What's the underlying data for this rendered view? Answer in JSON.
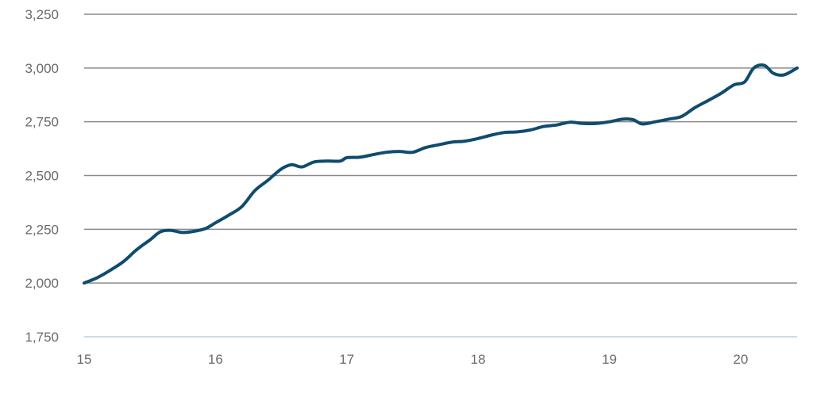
{
  "colors": {
    "line": "#0f4c6e",
    "grid": "#8a8a8a",
    "baseline": "#b9cfe0",
    "text": "#6b6b6b"
  },
  "chart_data": {
    "type": "line",
    "title": "",
    "xlabel": "",
    "ylabel": "",
    "xlim": [
      15,
      20.43
    ],
    "ylim": [
      1750,
      3250
    ],
    "grid": true,
    "y_ticks": [
      1750,
      2000,
      2250,
      2500,
      2750,
      3000,
      3250
    ],
    "y_tick_labels": [
      "1,750",
      "2,000",
      "2,250",
      "2,500",
      "2,750",
      "3,000",
      "3,250"
    ],
    "x_ticks": [
      15,
      16,
      17,
      18,
      19,
      20
    ],
    "x_tick_labels": [
      "15",
      "16",
      "17",
      "18",
      "19",
      "20"
    ],
    "series": [
      {
        "x": [
          15.0,
          15.1,
          15.2,
          15.3,
          15.4,
          15.5,
          15.58,
          15.66,
          15.75,
          15.85,
          15.93,
          16.0,
          16.1,
          16.2,
          16.3,
          16.4,
          16.5,
          16.58,
          16.66,
          16.75,
          16.85,
          16.95,
          17.0,
          17.1,
          17.2,
          17.3,
          17.4,
          17.5,
          17.6,
          17.7,
          17.8,
          17.9,
          18.0,
          18.1,
          18.2,
          18.3,
          18.4,
          18.5,
          18.6,
          18.7,
          18.8,
          18.9,
          19.0,
          19.1,
          19.18,
          19.25,
          19.35,
          19.45,
          19.55,
          19.65,
          19.75,
          19.85,
          19.95,
          20.03,
          20.1,
          20.18,
          20.25,
          20.33,
          20.43
        ],
        "y": [
          2000,
          2025,
          2060,
          2100,
          2155,
          2200,
          2238,
          2245,
          2235,
          2242,
          2255,
          2280,
          2315,
          2355,
          2430,
          2478,
          2530,
          2550,
          2540,
          2563,
          2567,
          2567,
          2583,
          2585,
          2597,
          2608,
          2612,
          2608,
          2630,
          2643,
          2655,
          2660,
          2672,
          2688,
          2700,
          2703,
          2712,
          2728,
          2735,
          2748,
          2742,
          2742,
          2750,
          2762,
          2760,
          2740,
          2750,
          2762,
          2775,
          2815,
          2848,
          2882,
          2922,
          2935,
          3000,
          3012,
          2975,
          2968,
          3000
        ]
      }
    ]
  }
}
